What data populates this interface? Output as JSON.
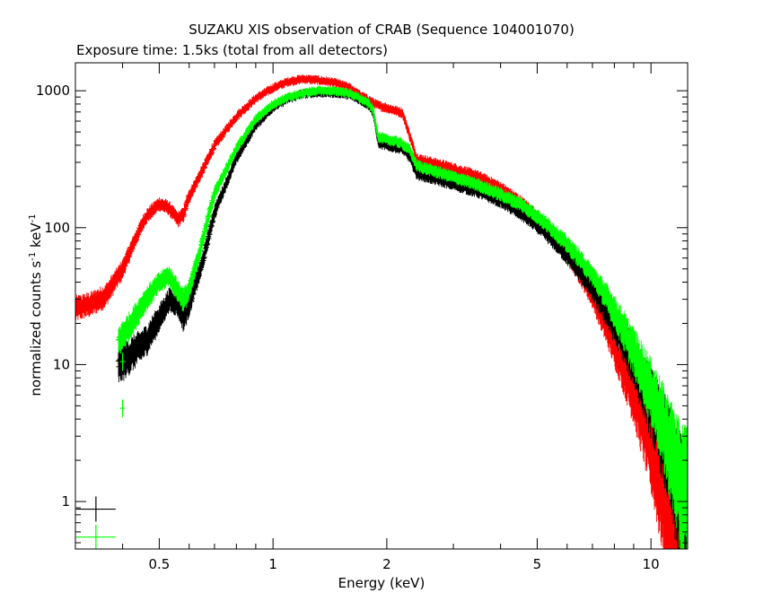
{
  "chart_data": {
    "type": "scatter",
    "title": "SUZAKU XIS observation of CRAB (Sequence 104001070)",
    "subtitle": "Exposure time: 1.5ks (total from all detectors)",
    "xlabel": "Energy (keV)",
    "ylabel_main": "normalized counts s",
    "ylabel_sup1": "-1",
    "ylabel_mid": " keV",
    "ylabel_sup2": "-1",
    "x_scale": "log",
    "y_scale": "log",
    "xlim": [
      0.3,
      12.5
    ],
    "ylim": [
      0.45,
      1600
    ],
    "grid": false,
    "x_ticks": [
      {
        "value": 0.5,
        "label": "0.5"
      },
      {
        "value": 1,
        "label": "1"
      },
      {
        "value": 2,
        "label": "2"
      },
      {
        "value": 5,
        "label": "5"
      },
      {
        "value": 10,
        "label": "10"
      }
    ],
    "y_ticks": [
      {
        "value": 1,
        "label": "1"
      },
      {
        "value": 10,
        "label": "10"
      },
      {
        "value": 100,
        "label": "100"
      },
      {
        "value": 1000,
        "label": "1000"
      }
    ],
    "series": [
      {
        "color": "#ff0000",
        "xmin": 0.3,
        "ymin_cut": 0.45,
        "x": [
          0.3,
          0.33,
          0.36,
          0.4,
          0.43,
          0.46,
          0.5,
          0.53,
          0.56,
          0.58,
          0.6,
          0.65,
          0.7,
          0.8,
          0.9,
          1.0,
          1.1,
          1.2,
          1.3,
          1.4,
          1.5,
          1.6,
          1.7,
          1.8,
          1.84,
          1.9,
          2.0,
          2.1,
          2.2,
          2.3,
          2.4,
          2.6,
          3.0,
          3.5,
          4.0,
          4.5,
          5.0,
          5.5,
          6.0,
          6.5,
          7.0,
          7.5,
          8.0,
          8.5,
          9.0,
          9.5,
          10.0,
          10.5,
          11.0,
          11.5,
          12.0
        ],
        "y": [
          26,
          28,
          32,
          50,
          80,
          120,
          150,
          140,
          115,
          125,
          170,
          260,
          400,
          650,
          880,
          1050,
          1170,
          1220,
          1200,
          1170,
          1120,
          1050,
          930,
          850,
          820,
          780,
          750,
          720,
          690,
          470,
          320,
          300,
          270,
          235,
          195,
          155,
          120,
          90,
          66,
          46,
          32,
          21,
          14,
          9.5,
          6.5,
          4.3,
          2.9,
          1.9,
          1.3,
          0.85,
          0.6
        ]
      },
      {
        "color": "#000000",
        "xmin": 0.39,
        "ymin_cut": 0.45,
        "x": [
          0.39,
          0.42,
          0.46,
          0.5,
          0.53,
          0.56,
          0.58,
          0.6,
          0.65,
          0.7,
          0.8,
          0.9,
          1.0,
          1.1,
          1.2,
          1.3,
          1.4,
          1.5,
          1.6,
          1.7,
          1.8,
          1.84,
          1.9,
          2.0,
          2.1,
          2.2,
          2.3,
          2.4,
          2.6,
          3.0,
          3.5,
          4.0,
          4.5,
          5.0,
          5.5,
          6.0,
          6.5,
          7.0,
          7.5,
          8.0,
          8.5,
          9.0,
          9.5,
          10.0,
          10.5,
          11.0,
          11.5,
          12.0
        ],
        "y": [
          10,
          12,
          15,
          22,
          30,
          28,
          22,
          28,
          55,
          130,
          320,
          560,
          760,
          880,
          950,
          970,
          970,
          960,
          930,
          860,
          780,
          700,
          420,
          400,
          390,
          380,
          330,
          250,
          235,
          210,
          185,
          158,
          130,
          105,
          82,
          63,
          48,
          36,
          27,
          20,
          15,
          11,
          8,
          5.8,
          4.2,
          3.0,
          2.1,
          1.5
        ]
      },
      {
        "color": "#00ff00",
        "xmin": 0.39,
        "ymin_cut": 0.45,
        "x": [
          0.39,
          0.42,
          0.46,
          0.5,
          0.53,
          0.56,
          0.58,
          0.6,
          0.65,
          0.7,
          0.8,
          0.9,
          1.0,
          1.1,
          1.2,
          1.3,
          1.4,
          1.5,
          1.6,
          1.7,
          1.8,
          1.84,
          1.9,
          2.0,
          2.1,
          2.2,
          2.3,
          2.4,
          2.6,
          3.0,
          3.5,
          4.0,
          4.5,
          5.0,
          5.5,
          6.0,
          6.5,
          7.0,
          7.5,
          8.0,
          8.5,
          9.0,
          9.5,
          10.0,
          10.5,
          11.0,
          11.5,
          12.0
        ],
        "y": [
          15,
          20,
          30,
          40,
          45,
          35,
          30,
          35,
          80,
          180,
          380,
          620,
          800,
          900,
          960,
          1000,
          1000,
          990,
          960,
          880,
          800,
          720,
          460,
          440,
          430,
          410,
          370,
          285,
          265,
          235,
          205,
          175,
          150,
          122,
          97,
          76,
          59,
          45,
          34,
          25,
          18,
          13,
          9.5,
          7,
          5,
          3.5,
          2.5,
          1.7
        ]
      }
    ],
    "isolated_points": [
      {
        "color": "#00ff00",
        "x": 0.4,
        "y": 4.8
      },
      {
        "color": "#00ff00",
        "x": 0.4,
        "y": 10.5
      }
    ],
    "legend_markers": [
      {
        "color": "#000000",
        "x": 0.34,
        "y": 0.88
      },
      {
        "color": "#00ff00",
        "x": 0.34,
        "y": 0.55
      }
    ]
  }
}
